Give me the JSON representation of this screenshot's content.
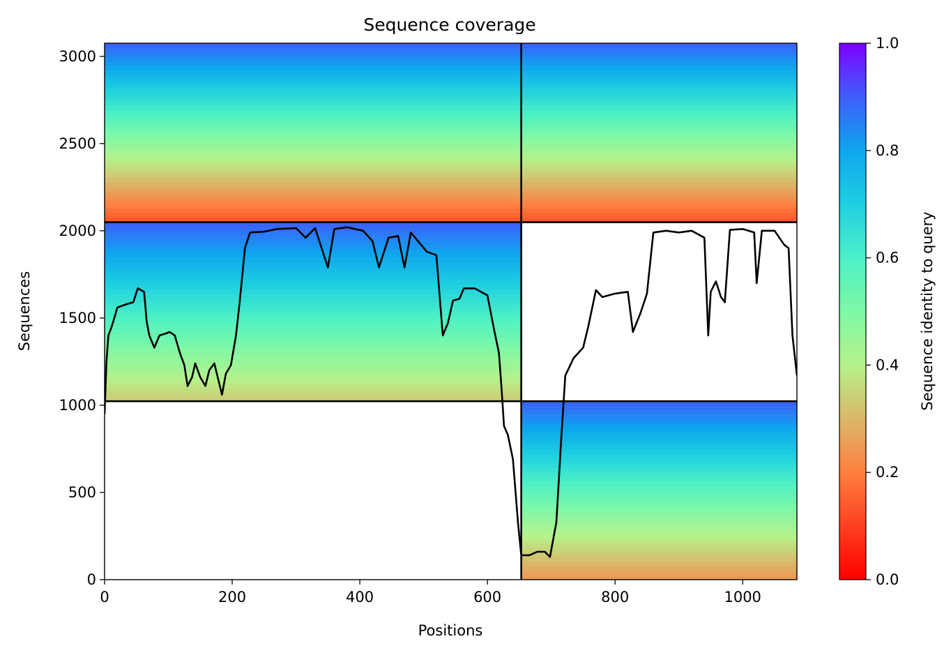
{
  "chart_data": {
    "type": "heatmap",
    "title": "Sequence coverage",
    "xlabel": "Positions",
    "ylabel": "Sequences",
    "xlim": [
      0,
      1085
    ],
    "ylim": [
      0,
      3075
    ],
    "xticks": [
      0,
      200,
      400,
      600,
      800,
      1000
    ],
    "yticks": [
      0,
      500,
      1000,
      1500,
      2000,
      2500,
      3000
    ],
    "colorbar": {
      "label": "Sequence identity to query",
      "range": [
        0.0,
        1.0
      ],
      "ticks": [
        "0.0",
        "0.2",
        "0.4",
        "0.6",
        "0.8",
        "1.0"
      ],
      "colormap": "rainbow_r"
    },
    "chain_boundaries": {
      "positions": [
        653
      ],
      "sequences": [
        1023,
        2049
      ]
    },
    "blocks": [
      {
        "pos": [
          0,
          653
        ],
        "seq": [
          1023,
          2049
        ],
        "identity_top": 0.9,
        "identity_bottom": 0.33
      },
      {
        "pos": [
          0,
          653
        ],
        "seq": [
          2049,
          3075
        ],
        "identity_top": 0.9,
        "identity_bottom": 0.13
      },
      {
        "pos": [
          653,
          1085
        ],
        "seq": [
          2049,
          3075
        ],
        "identity_top": 0.9,
        "identity_bottom": 0.13
      },
      {
        "pos": [
          653,
          1085
        ],
        "seq": [
          0,
          1023
        ],
        "identity_top": 0.9,
        "identity_bottom": 0.24
      }
    ],
    "coverage_line": {
      "color": "#000000",
      "points": [
        [
          0,
          950
        ],
        [
          3,
          1250
        ],
        [
          6,
          1400
        ],
        [
          12,
          1460
        ],
        [
          20,
          1560
        ],
        [
          35,
          1580
        ],
        [
          45,
          1590
        ],
        [
          52,
          1670
        ],
        [
          62,
          1650
        ],
        [
          66,
          1480
        ],
        [
          70,
          1400
        ],
        [
          78,
          1330
        ],
        [
          86,
          1400
        ],
        [
          95,
          1410
        ],
        [
          102,
          1420
        ],
        [
          110,
          1400
        ],
        [
          118,
          1300
        ],
        [
          125,
          1230
        ],
        [
          130,
          1110
        ],
        [
          137,
          1160
        ],
        [
          142,
          1240
        ],
        [
          150,
          1160
        ],
        [
          158,
          1110
        ],
        [
          164,
          1200
        ],
        [
          172,
          1240
        ],
        [
          178,
          1150
        ],
        [
          184,
          1060
        ],
        [
          190,
          1180
        ],
        [
          198,
          1230
        ],
        [
          206,
          1400
        ],
        [
          212,
          1600
        ],
        [
          220,
          1900
        ],
        [
          228,
          1990
        ],
        [
          250,
          1995
        ],
        [
          270,
          2010
        ],
        [
          300,
          2015
        ],
        [
          315,
          1960
        ],
        [
          330,
          2015
        ],
        [
          350,
          1790
        ],
        [
          360,
          2010
        ],
        [
          380,
          2020
        ],
        [
          405,
          2000
        ],
        [
          420,
          1940
        ],
        [
          430,
          1790
        ],
        [
          445,
          1960
        ],
        [
          460,
          1970
        ],
        [
          470,
          1790
        ],
        [
          480,
          1990
        ],
        [
          505,
          1880
        ],
        [
          520,
          1860
        ],
        [
          530,
          1400
        ],
        [
          538,
          1470
        ],
        [
          546,
          1600
        ],
        [
          556,
          1610
        ],
        [
          563,
          1670
        ],
        [
          580,
          1670
        ],
        [
          600,
          1630
        ],
        [
          610,
          1440
        ],
        [
          618,
          1300
        ],
        [
          622,
          1100
        ],
        [
          626,
          880
        ],
        [
          632,
          830
        ],
        [
          640,
          690
        ],
        [
          648,
          320
        ],
        [
          653,
          140
        ],
        [
          666,
          140
        ],
        [
          678,
          160
        ],
        [
          690,
          160
        ],
        [
          698,
          130
        ],
        [
          708,
          330
        ],
        [
          716,
          830
        ],
        [
          722,
          1170
        ],
        [
          735,
          1270
        ],
        [
          750,
          1330
        ],
        [
          758,
          1450
        ],
        [
          770,
          1660
        ],
        [
          780,
          1620
        ],
        [
          800,
          1640
        ],
        [
          820,
          1650
        ],
        [
          828,
          1420
        ],
        [
          840,
          1530
        ],
        [
          850,
          1640
        ],
        [
          860,
          1990
        ],
        [
          880,
          2000
        ],
        [
          900,
          1990
        ],
        [
          920,
          2000
        ],
        [
          940,
          1960
        ],
        [
          946,
          1400
        ],
        [
          950,
          1650
        ],
        [
          958,
          1710
        ],
        [
          966,
          1620
        ],
        [
          972,
          1590
        ],
        [
          980,
          2005
        ],
        [
          1000,
          2010
        ],
        [
          1018,
          1990
        ],
        [
          1022,
          1700
        ],
        [
          1030,
          2000
        ],
        [
          1050,
          2000
        ],
        [
          1065,
          1920
        ],
        [
          1072,
          1900
        ],
        [
          1078,
          1400
        ],
        [
          1085,
          1170
        ]
      ]
    }
  }
}
